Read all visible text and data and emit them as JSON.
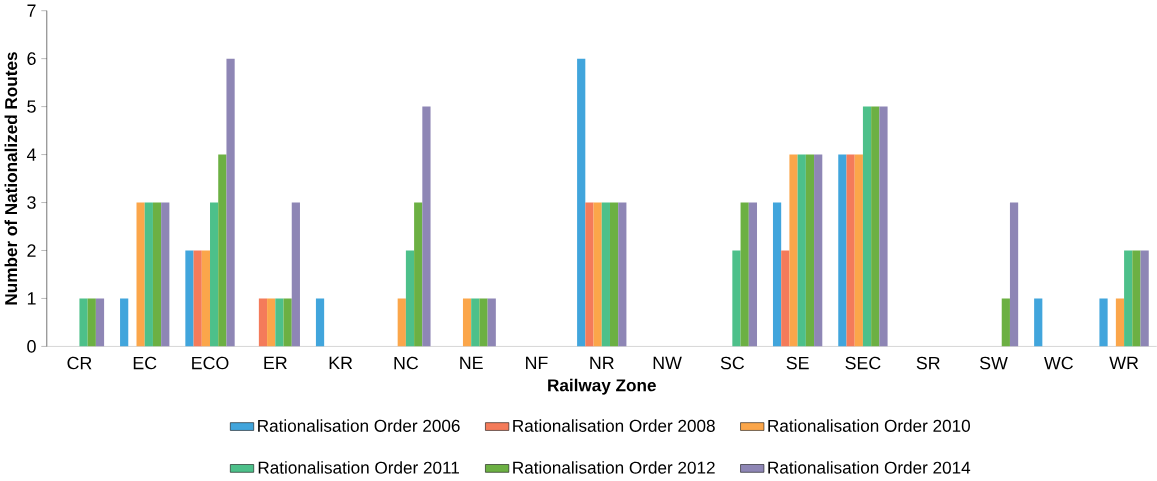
{
  "chart_data": {
    "type": "bar",
    "xlabel": "Railway Zone",
    "ylabel": "Number of Nationalized Routes",
    "categories": [
      "CR",
      "EC",
      "ECO",
      "ER",
      "KR",
      "NC",
      "NE",
      "NF",
      "NR",
      "NW",
      "SC",
      "SE",
      "SEC",
      "SR",
      "SW",
      "WC",
      "WR"
    ],
    "series": [
      {
        "name": "Rationalisation Order 2006",
        "color": "#41a5dc",
        "values": [
          0,
          1,
          2,
          0,
          1,
          0,
          0,
          0,
          6,
          0,
          0,
          3,
          4,
          0,
          0,
          1,
          1
        ]
      },
      {
        "name": "Rationalisation Order 2008",
        "color": "#f47b5a",
        "values": [
          0,
          0,
          2,
          1,
          0,
          0,
          0,
          0,
          3,
          0,
          0,
          2,
          4,
          0,
          0,
          0,
          0
        ]
      },
      {
        "name": "Rationalisation Order 2010",
        "color": "#fba64a",
        "values": [
          0,
          3,
          2,
          1,
          0,
          1,
          1,
          0,
          3,
          0,
          0,
          4,
          4,
          0,
          0,
          0,
          1
        ]
      },
      {
        "name": "Rationalisation Order 2011",
        "color": "#4dc08a",
        "values": [
          1,
          3,
          3,
          1,
          0,
          2,
          1,
          0,
          3,
          0,
          2,
          4,
          5,
          0,
          0,
          0,
          2
        ]
      },
      {
        "name": "Rationalisation Order 2012",
        "color": "#6cb043",
        "values": [
          1,
          3,
          4,
          1,
          0,
          3,
          1,
          0,
          3,
          0,
          3,
          4,
          5,
          0,
          1,
          0,
          2
        ]
      },
      {
        "name": "Rationalisation Order 2014",
        "color": "#8e86b5",
        "values": [
          1,
          3,
          6,
          3,
          0,
          5,
          1,
          0,
          3,
          0,
          3,
          4,
          5,
          0,
          3,
          0,
          2
        ]
      }
    ],
    "ylim": [
      0,
      7
    ],
    "yticks": [
      0,
      1,
      2,
      3,
      4,
      5,
      6,
      7
    ],
    "legend": "bottom"
  }
}
